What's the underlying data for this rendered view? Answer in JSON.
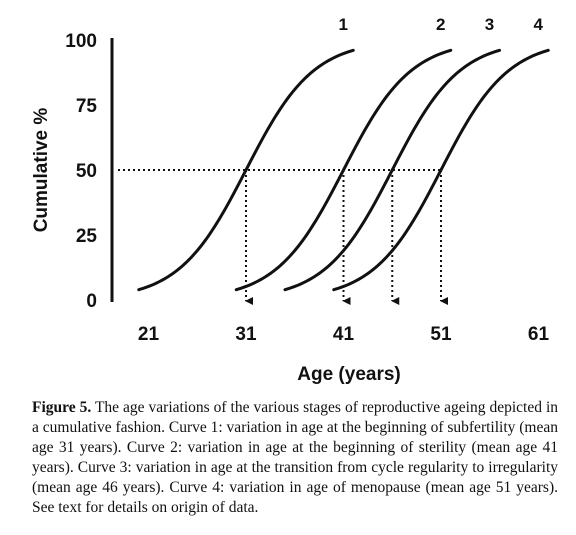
{
  "chart_data": {
    "type": "line",
    "xlabel": "Age (years)",
    "ylabel": "Cumulative %",
    "xlim": [
      17,
      63
    ],
    "ylim": [
      0,
      100
    ],
    "x_ticks": [
      21,
      31,
      41,
      51,
      61
    ],
    "y_ticks": [
      0,
      25,
      50,
      75,
      100
    ],
    "grid": false,
    "reference_line": {
      "y": 50
    },
    "series": [
      {
        "name": "1",
        "mean": 31,
        "x_start": 20,
        "x_end": 42
      },
      {
        "name": "2",
        "mean": 41,
        "x_start": 30,
        "x_end": 52
      },
      {
        "name": "3",
        "mean": 46,
        "x_start": 35,
        "x_end": 57
      },
      {
        "name": "4",
        "mean": 51,
        "x_start": 40,
        "x_end": 62
      }
    ]
  },
  "caption": {
    "label": "Figure 5.",
    "text": "The age variations of the various stages of reproductive ageing depicted in a cumulative fashion. Curve 1: variation in age at the beginning of subfertility (mean age 31 years). Curve 2: variation in age at the beginning of sterility (mean age 41 years). Curve 3: variation in age at the transition from cycle regularity to irregularity (mean age 46 years). Curve 4: variation in age of menopause (mean age 51 years). See text for details on origin of data."
  }
}
